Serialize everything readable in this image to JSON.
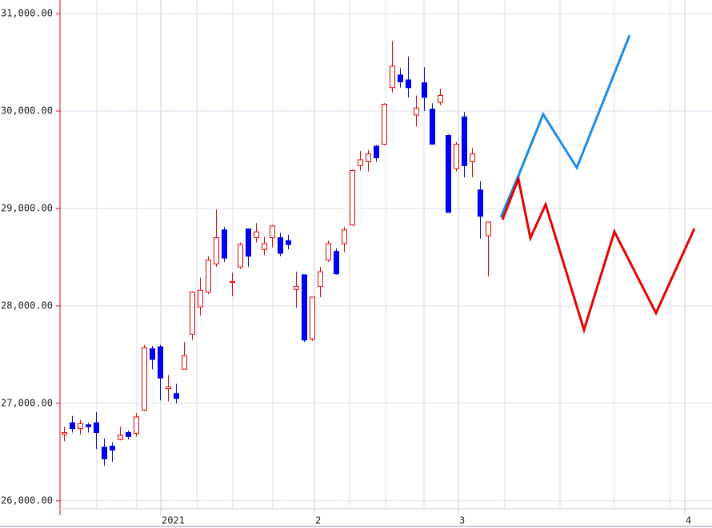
{
  "chart_data": {
    "type": "candlestick",
    "xlim": [
      -0.5,
      81
    ],
    "ylim": [
      25720,
      31140
    ],
    "yticks": [
      {
        "value": 26000,
        "label": "26,000.00"
      },
      {
        "value": 27000,
        "label": "27,000.00"
      },
      {
        "value": 28000,
        "label": "28,000.00"
      },
      {
        "value": 29000,
        "label": "29,000.00"
      },
      {
        "value": 30000,
        "label": "30,000.00"
      },
      {
        "value": 31000,
        "label": "31,000.00"
      }
    ],
    "xticks": [
      {
        "value": 12.1,
        "label": "2021"
      },
      {
        "value": 31.3,
        "label": "2"
      },
      {
        "value": 49.3,
        "label": "3"
      },
      {
        "value": 77.6,
        "label": "4"
      }
    ],
    "xgrid": [
      4.1,
      9.1,
      16.6,
      21.1,
      26.1,
      35.7,
      40.2,
      45,
      55.1,
      62,
      68.8,
      75.8
    ],
    "grid": true,
    "up_color": "#e60000",
    "down_color": "#0000f0",
    "open": [
      26680,
      26800,
      26740,
      26780,
      26800,
      26550,
      26560,
      26630,
      26700,
      26690,
      26930,
      27560,
      27580,
      27150,
      27100,
      27350,
      27710,
      27990,
      28140,
      28430,
      28780,
      28240,
      28400,
      28790,
      28700,
      28580,
      28700,
      28700,
      28670,
      28170,
      28320,
      27660,
      28200,
      28470,
      28560,
      28640,
      28830,
      29440,
      29480,
      29640,
      29660,
      30240,
      30370,
      30320,
      29960,
      30290,
      30020,
      30090,
      29750,
      29410,
      29940,
      29480,
      29190,
      28720
    ],
    "close": [
      26700,
      26740,
      26790,
      26760,
      26700,
      26430,
      26520,
      26670,
      26660,
      26860,
      27570,
      27450,
      27260,
      27170,
      27050,
      27490,
      28140,
      28160,
      28470,
      28700,
      28490,
      28250,
      28630,
      28510,
      28760,
      28640,
      28820,
      28540,
      28630,
      28200,
      27650,
      28090,
      28350,
      28640,
      28330,
      28780,
      29390,
      29500,
      29560,
      29520,
      30070,
      30460,
      30300,
      30240,
      30030,
      30140,
      29660,
      30160,
      28960,
      29660,
      29440,
      29560,
      28920,
      28860
    ],
    "high": [
      26760,
      26870,
      26830,
      26800,
      26910,
      26640,
      26600,
      26760,
      26720,
      26900,
      27600,
      27590,
      27600,
      27290,
      27200,
      27630,
      28150,
      28290,
      28510,
      28990,
      28810,
      28340,
      28650,
      28790,
      28850,
      28710,
      28830,
      28750,
      28730,
      28350,
      28320,
      28090,
      28400,
      28670,
      28590,
      28810,
      29400,
      29590,
      29600,
      29650,
      30080,
      30720,
      30440,
      30560,
      30160,
      30450,
      30080,
      30230,
      29760,
      29680,
      29990,
      29620,
      29280,
      28860
    ],
    "low": [
      26610,
      26700,
      26680,
      26700,
      26530,
      26360,
      26400,
      26620,
      26630,
      26660,
      26920,
      27350,
      27030,
      27020,
      27000,
      27350,
      27650,
      27900,
      28120,
      28400,
      28450,
      28100,
      28380,
      28400,
      28650,
      28520,
      28600,
      28510,
      28580,
      27980,
      27630,
      27640,
      28090,
      28450,
      28320,
      28550,
      28820,
      29390,
      29380,
      29480,
      29650,
      30190,
      30240,
      30140,
      29840,
      30000,
      29660,
      30060,
      28960,
      29380,
      29320,
      29320,
      28690,
      28300
    ],
    "projections": [
      {
        "color": "#1a8ce8",
        "x": [
          54.6,
          56.8,
          59.9,
          64.1,
          70.7
        ],
        "values": [
          28910,
          29336,
          29967,
          29418,
          30779
        ]
      },
      {
        "color": "#e60000",
        "x": [
          54.8,
          56.8,
          58.3,
          60.2,
          65,
          68.8,
          74,
          78.8
        ],
        "values": [
          28885,
          29303,
          28697,
          29041,
          27754,
          28762,
          27926,
          28795
        ]
      }
    ]
  }
}
